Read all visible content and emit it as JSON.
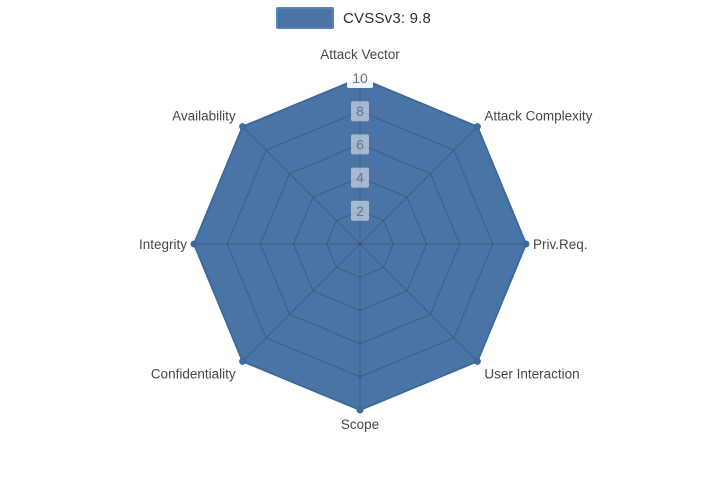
{
  "legend": {
    "label": "CVSSv3: 9.8"
  },
  "chart_data": {
    "type": "radar",
    "categories": [
      "Attack Vector",
      "Attack Complexity",
      "Priv.Req.",
      "User Interaction",
      "Scope",
      "Confidentiality",
      "Integrity",
      "Availability"
    ],
    "series": [
      {
        "name": "CVSSv3: 9.8",
        "values": [
          10,
          10,
          10,
          10,
          10,
          10,
          10,
          10
        ]
      }
    ],
    "radial_ticks": [
      2,
      4,
      6,
      8,
      10
    ],
    "radial_range": [
      0,
      10
    ],
    "rotation_clockwise_from_top": true,
    "gridshape": "linear-octagon",
    "legend_position": "top-center",
    "colors": {
      "fill": "#4a74a4",
      "line": "#3d6a9e",
      "marker": "#3d6a9e",
      "grid": "rgba(25,39,60,0.28)",
      "tick_box": "rgba(255,255,255,0.5)",
      "tick_box_outer": "rgba(255,255,255,0.92)",
      "tick_text": "#6b7280",
      "label_text": "#474747",
      "legend_text": "#2f2f2f",
      "background": "#ffffff"
    }
  }
}
